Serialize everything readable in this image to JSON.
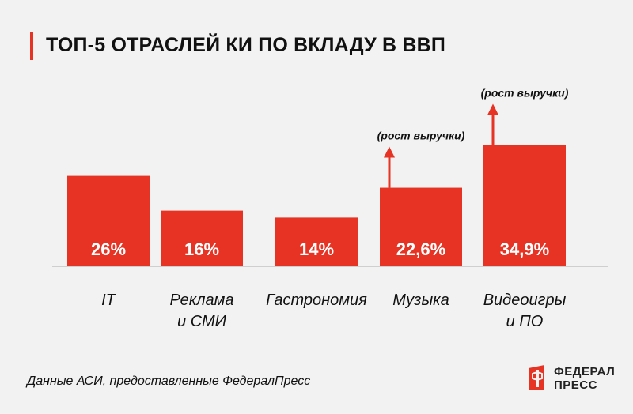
{
  "colors": {
    "accent": "#e63323",
    "bar": "#e63323",
    "text": "#111111",
    "background": "#f2f2f2"
  },
  "title": "ТОП-5 ОТРАСЛЕЙ КИ ПО ВКЛАДУ В ВВП",
  "source": "Данные АСИ, предоставленные ФедералПресс",
  "logo": {
    "line1": "ФЕДЕРАЛ",
    "line2": "ПРЕСС"
  },
  "chart_data": {
    "type": "bar",
    "title": "ТОП-5 ОТРАСЛЕЙ КИ ПО ВКЛАДУ В ВВП",
    "xlabel": "",
    "ylabel": "",
    "ylim": [
      0,
      50
    ],
    "grid": false,
    "categories": [
      {
        "name": "IT",
        "lines": [
          "IT"
        ]
      },
      {
        "name": "Реклама и СМИ",
        "lines": [
          "Реклама",
          "и СМИ"
        ]
      },
      {
        "name": "Гастрономия",
        "lines": [
          "Гастрономия"
        ]
      },
      {
        "name": "Музыка",
        "lines": [
          "Музыка"
        ]
      },
      {
        "name": "Видеоигры и ПО",
        "lines": [
          "Видеоигры",
          "и ПО"
        ]
      }
    ],
    "values": [
      26,
      16,
      14,
      22.6,
      34.9
    ],
    "value_labels": [
      "26%",
      "16%",
      "14%",
      "22,6%",
      "34,9%"
    ],
    "annotations": [
      {
        "category_index": 3,
        "text": "(рост выручки)",
        "arrow": "up"
      },
      {
        "category_index": 4,
        "text": "(рост выручки)",
        "arrow": "up"
      }
    ]
  }
}
